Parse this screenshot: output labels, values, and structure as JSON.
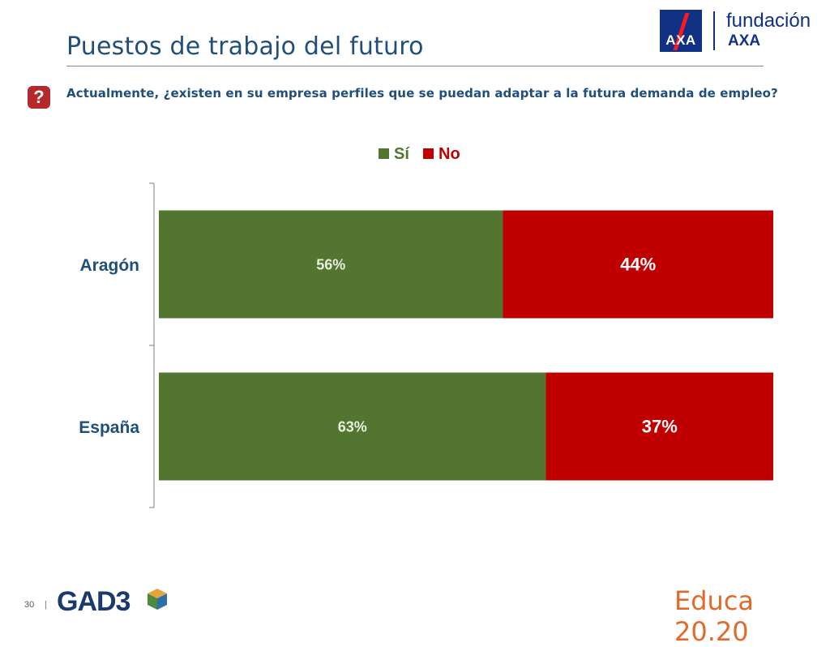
{
  "header": {
    "title": "Puestos de trabajo del futuro",
    "logo_word1": "fundación",
    "logo_word2": "AXA",
    "logo_mark": "AXA"
  },
  "question": {
    "icon": "?",
    "text": "Actualmente, ¿existen en su empresa perfiles que se puedan adaptar a la futura demanda de empleo?"
  },
  "footer": {
    "page_number": "30",
    "separator": "|",
    "gad3": "GAD3",
    "educa": "Educa 20.20"
  },
  "colors": {
    "si": "#527530",
    "no": "#c00000",
    "category_label": "#1f4f7a",
    "axis": "#7f7f7f"
  },
  "chart_data": {
    "type": "bar",
    "orientation": "horizontal",
    "stacked": true,
    "categories": [
      "Aragón",
      "España"
    ],
    "series": [
      {
        "name": "Sí",
        "values": [
          56,
          63
        ],
        "labels": [
          "56%",
          "63%"
        ]
      },
      {
        "name": "No",
        "values": [
          44,
          37
        ],
        "labels": [
          "44%",
          "37%"
        ]
      }
    ],
    "xlim": [
      0,
      100
    ],
    "legend": "top",
    "grid": false
  }
}
